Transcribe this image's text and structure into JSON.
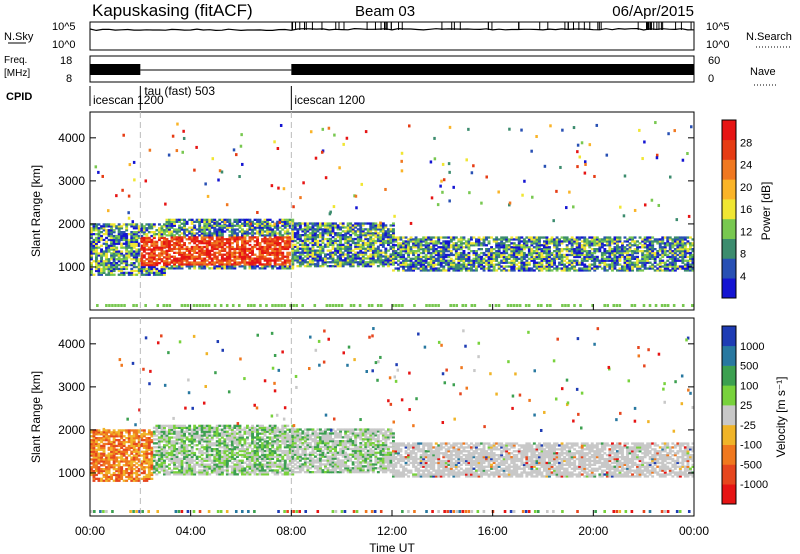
{
  "header": {
    "title_left": "Kapuskasing (fitACF)",
    "title_center": "Beam 03",
    "title_right": "06/Apr/2015"
  },
  "status_panels": {
    "nsky_label": "N.Sky",
    "nsky_ticks": [
      "10^5",
      "10^0"
    ],
    "nsearch_label": "N.Search",
    "freq_label_1": "Freq.",
    "freq_label_2": "[MHz]",
    "freq_ticks": [
      "18",
      "8"
    ],
    "nave_ticks": [
      "60",
      "0"
    ],
    "nave_label": "Nave",
    "cpid_label": "CPID",
    "cpid_segments": [
      {
        "label": "icescan  1200",
        "start_h": 0.0,
        "end_h": 2.0
      },
      {
        "label": "tau (fast) 503",
        "start_h": 2.0,
        "end_h": 8.0
      },
      {
        "label": "icescan 1200",
        "start_h": 8.0,
        "end_h": 24.0
      }
    ],
    "freq_gap_h": [
      2.0,
      8.0
    ]
  },
  "chart_data": [
    {
      "type": "heatmap",
      "name": "power",
      "xlabel": "",
      "ylabel": "Slant Range [km]",
      "xlim": [
        0,
        24
      ],
      "ylim": [
        0,
        4600
      ],
      "yticks": [
        1000,
        2000,
        3000,
        4000
      ],
      "colorbar": {
        "label": "Power [dB]",
        "ticks": [
          "4",
          "8",
          "12",
          "16",
          "20",
          "24",
          "28"
        ],
        "colors": [
          "#1414d2",
          "#2850b4",
          "#3c8c6e",
          "#78c850",
          "#f0e632",
          "#fab428",
          "#f07820",
          "#e63c14",
          "#e61414"
        ]
      },
      "bands": [
        {
          "start_h": 0.0,
          "end_h": 3.0,
          "low_km": 800,
          "high_km": 2000
        },
        {
          "start_h": 3.0,
          "end_h": 8.0,
          "low_km": 950,
          "high_km": 2100
        },
        {
          "start_h": 8.0,
          "end_h": 12.0,
          "low_km": 1000,
          "high_km": 2000
        },
        {
          "start_h": 12.0,
          "end_h": 24.0,
          "low_km": 900,
          "high_km": 1700
        }
      ]
    },
    {
      "type": "heatmap",
      "name": "velocity",
      "xlabel": "Time UT",
      "ylabel": "Slant Range [km]",
      "xlim": [
        0,
        24
      ],
      "ylim": [
        0,
        4600
      ],
      "yticks": [
        1000,
        2000,
        3000,
        4000
      ],
      "xticks": [
        "00:00",
        "04:00",
        "08:00",
        "12:00",
        "16:00",
        "20:00",
        "00:00"
      ],
      "colorbar": {
        "label": "Velocity [m s⁻¹]",
        "ticks": [
          "1000",
          "500",
          "100",
          "25",
          "-25",
          "-100",
          "-500",
          "-1000"
        ],
        "colors": [
          "#1e3cb4",
          "#2878a0",
          "#3ca050",
          "#78d23c",
          "#c8c8c8",
          "#f0b428",
          "#f0781e",
          "#e6461e",
          "#e61414"
        ]
      },
      "bands": [
        {
          "start_h": 0.0,
          "end_h": 2.5,
          "low_km": 800,
          "high_km": 2000
        },
        {
          "start_h": 2.5,
          "end_h": 8.0,
          "low_km": 950,
          "high_km": 2100
        },
        {
          "start_h": 8.0,
          "end_h": 12.0,
          "low_km": 1000,
          "high_km": 2000
        },
        {
          "start_h": 12.0,
          "end_h": 24.0,
          "low_km": 900,
          "high_km": 1700
        }
      ]
    }
  ]
}
